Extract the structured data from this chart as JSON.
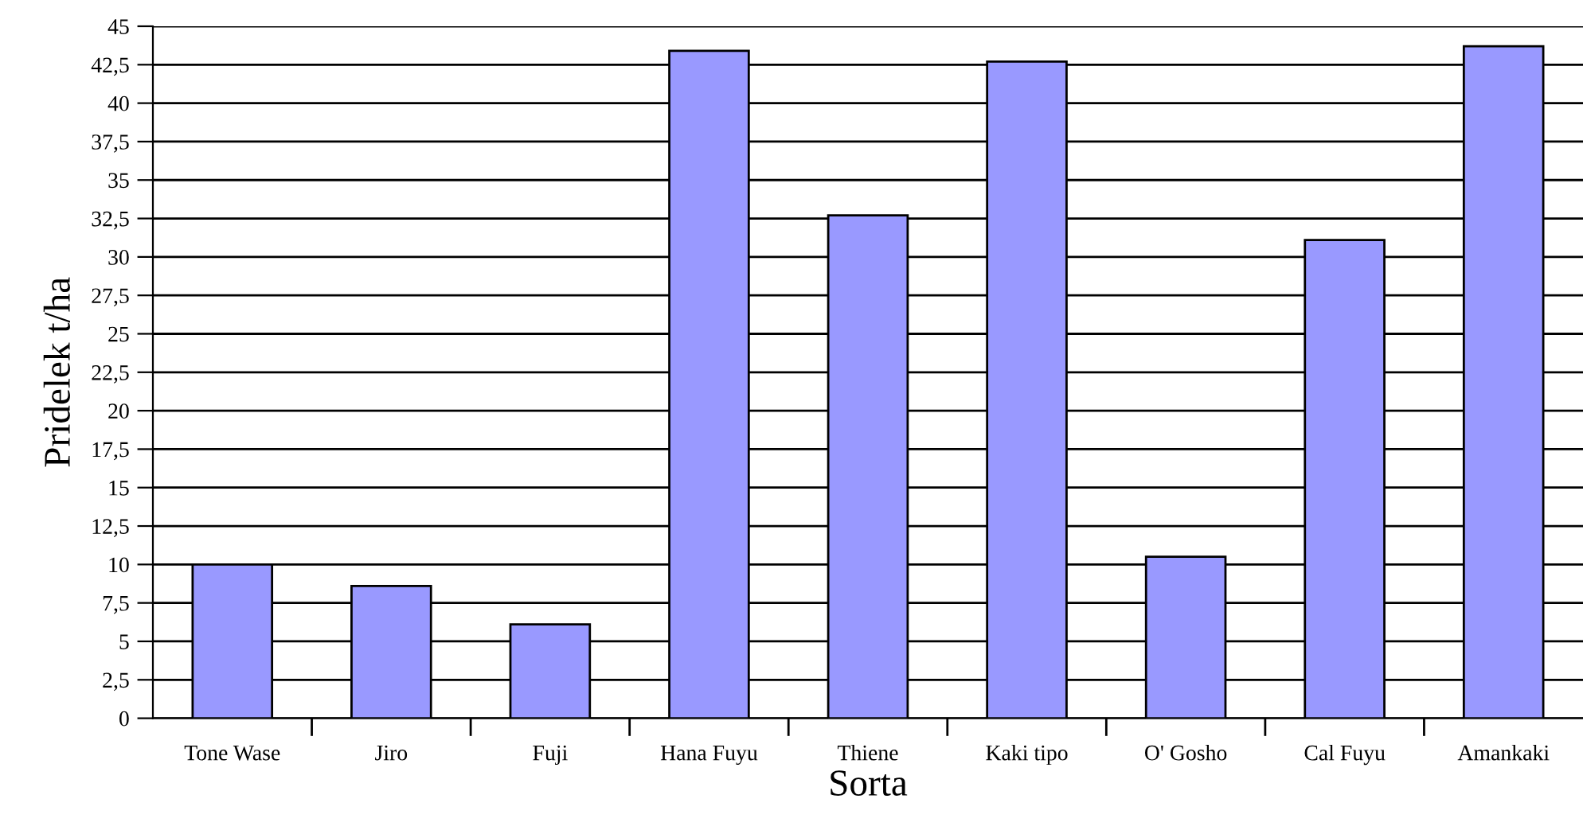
{
  "chart_data": {
    "type": "bar",
    "xlabel": "Sorta",
    "ylabel": "Pridelek t/ha",
    "categories": [
      "Tone Wase",
      "Jiro",
      "Fuji",
      "Hana Fuyu",
      "Thiene",
      "Kaki tipo",
      "O' Gosho",
      "Cal Fuyu",
      "Amankaki"
    ],
    "values": [
      10.0,
      8.6,
      6.1,
      43.4,
      32.7,
      42.7,
      10.5,
      31.1,
      43.7
    ],
    "color": "#9999ff",
    "ylim": [
      0,
      45
    ],
    "yticks": [
      0,
      {
        "value": 2.5,
        "label": "2,5"
      },
      5,
      {
        "value": 7.5,
        "label": "7,5"
      },
      10,
      {
        "value": 12.5,
        "label": "12,5"
      },
      15,
      {
        "value": 17.5,
        "label": "17,5"
      },
      20,
      {
        "value": 22.5,
        "label": "22,5"
      },
      25,
      {
        "value": 27.5,
        "label": "27,5"
      },
      30,
      {
        "value": 32.5,
        "label": "32,5"
      },
      35,
      {
        "value": 37.5,
        "label": "37,5"
      },
      40,
      {
        "value": 42.5,
        "label": "42,5"
      },
      45
    ],
    "grid": "y",
    "legend": false
  }
}
